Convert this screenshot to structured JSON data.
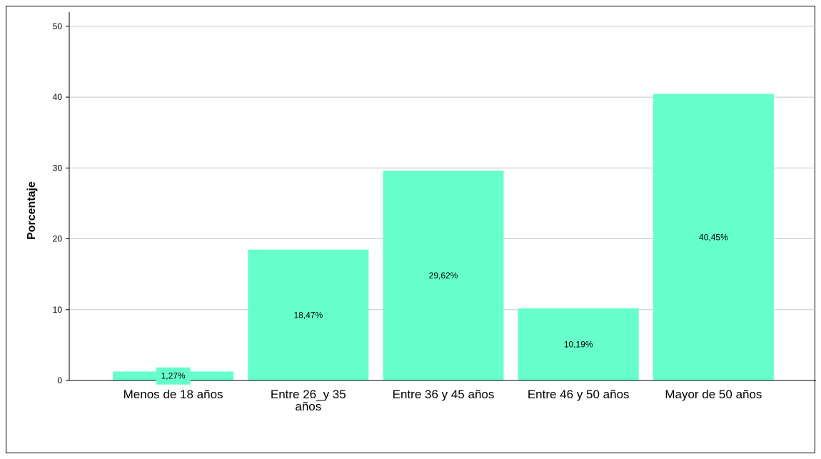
{
  "chart_data": {
    "type": "bar",
    "title": "",
    "xlabel": "",
    "ylabel": "Porcentaje",
    "ylim": [
      0,
      52
    ],
    "yticks": [
      0,
      10,
      20,
      30,
      40,
      50
    ],
    "grid": true,
    "legend": "none",
    "bar_color": "#66FFCC",
    "categories": [
      [
        "Menos de 18 años"
      ],
      [
        "Entre 26_y 35",
        "años"
      ],
      [
        "Entre 36 y 45 años"
      ],
      [
        "Entre 46 y 50 años"
      ],
      [
        "Mayor de 50 años"
      ]
    ],
    "values": [
      1.27,
      18.47,
      29.62,
      10.19,
      40.45
    ],
    "data_labels": [
      "1,27%",
      "18,47%",
      "29,62%",
      "10,19%",
      "40,45%"
    ]
  }
}
